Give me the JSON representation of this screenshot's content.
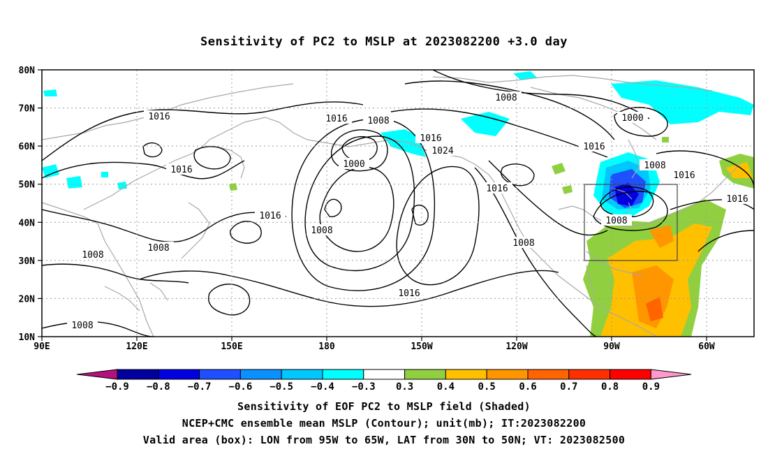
{
  "title": "Sensitivity of PC2 to MSLP at 2023082200 +3.0 day",
  "latitude_labels": [
    "80N",
    "70N",
    "60N",
    "50N",
    "40N",
    "30N",
    "20N",
    "10N"
  ],
  "longitude_labels": [
    "90E",
    "120E",
    "150E",
    "180",
    "150W",
    "120W",
    "90W",
    "60W"
  ],
  "contour_labels": [
    "1016",
    "1016",
    "1016",
    "1008",
    "1016",
    "1008",
    "1000",
    "1016",
    "1024",
    "1016",
    "1008",
    "1008",
    "1008",
    "1008",
    "1016",
    "1008",
    "1000",
    "1016",
    "1008",
    "1016",
    "1016",
    "1008"
  ],
  "colorbar": {
    "labels": [
      "−0.9",
      "−0.8",
      "−0.7",
      "−0.6",
      "−0.5",
      "−0.4",
      "−0.3",
      "0.3",
      "0.4",
      "0.5",
      "0.6",
      "0.7",
      "0.8",
      "0.9"
    ],
    "colors": [
      "#b4107f",
      "#00009e",
      "#0000e0",
      "#1e50ff",
      "#0a90ff",
      "#00c8ff",
      "#00ffff",
      "#ffffff",
      "#90d040",
      "#ffc000",
      "#ff9600",
      "#ff6400",
      "#ff3000",
      "#ff0000",
      "#ff99cc"
    ]
  },
  "valid_box": {
    "lon_west": -95,
    "lon_east": -65,
    "lat_south": 30,
    "lat_north": 50
  },
  "captions": [
    "Sensitivity of EOF PC2 to MSLP field (Shaded)",
    "NCEP+CMC ensemble mean MSLP (Contour); unit(mb); IT:2023082200",
    "Valid area (box): LON from 95W to 65W, LAT from 30N to 50N; VT: 2023082500"
  ]
}
